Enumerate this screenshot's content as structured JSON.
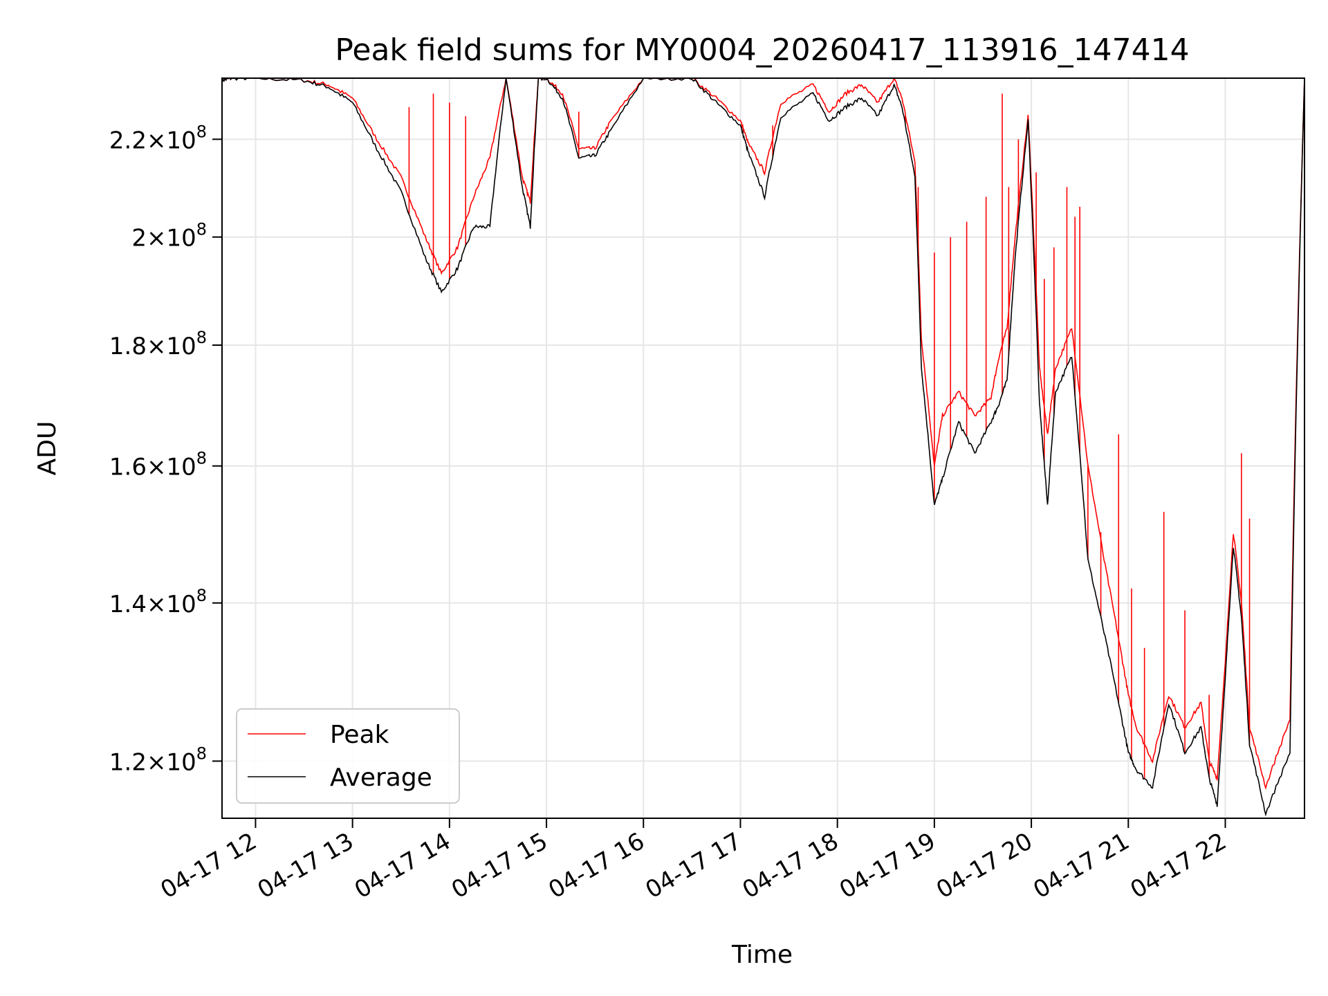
{
  "chart_data": {
    "type": "line",
    "title": "Peak field sums for MY0004_20260417_113916_147414",
    "xlabel": "Time",
    "ylabel": "ADU",
    "yscale": "log",
    "grid": true,
    "legend_position": "lower-left",
    "x_ticks": [
      "04-17 12",
      "04-17 13",
      "04-17 14",
      "04-17 15",
      "04-17 16",
      "04-17 17",
      "04-17 18",
      "04-17 19",
      "04-17 20",
      "04-17 21",
      "04-17 22"
    ],
    "y_ticks": [
      {
        "value": 120000000,
        "mant": "1.2",
        "exp": "8"
      },
      {
        "value": 140000000,
        "mant": "1.4",
        "exp": "8"
      },
      {
        "value": 160000000,
        "mant": "1.6",
        "exp": "8"
      },
      {
        "value": 180000000,
        "mant": "1.8",
        "exp": "8"
      },
      {
        "value": 200000000,
        "mant": "2",
        "exp": "8"
      },
      {
        "value": 220000000,
        "mant": "2.2",
        "exp": "8"
      }
    ],
    "times_and_multiply": "×",
    "tick_base": "10",
    "xlim": [
      "2026-04-17T11:39:16",
      "2026-04-17T22:49:00"
    ],
    "ylim": [
      113500000,
      233500000
    ],
    "series": [
      {
        "name": "Peak",
        "color": "#ff0000",
        "x": [
          "2026-04-17T11:39:16",
          "2026-04-17T11:45:00",
          "2026-04-17T12:00:00",
          "2026-04-17T12:30:00",
          "2026-04-17T12:45:00",
          "2026-04-17T13:00:00",
          "2026-04-17T13:15:00",
          "2026-04-17T13:30:00",
          "2026-04-17T13:45:00",
          "2026-04-17T13:55:00",
          "2026-04-17T14:05:00",
          "2026-04-17T14:15:00",
          "2026-04-17T14:25:00",
          "2026-04-17T14:35:00",
          "2026-04-17T14:45:00",
          "2026-04-17T14:50:00",
          "2026-04-17T14:55:00",
          "2026-04-17T15:00:00",
          "2026-04-17T15:10:00",
          "2026-04-17T15:20:00",
          "2026-04-17T15:30:00",
          "2026-04-17T15:40:00",
          "2026-04-17T16:00:00",
          "2026-04-17T16:30:00",
          "2026-04-17T16:45:00",
          "2026-04-17T17:00:00",
          "2026-04-17T17:05:00",
          "2026-04-17T17:15:00",
          "2026-04-17T17:25:00",
          "2026-04-17T17:45:00",
          "2026-04-17T17:55:00",
          "2026-04-17T18:05:00",
          "2026-04-17T18:15:00",
          "2026-04-17T18:25:00",
          "2026-04-17T18:35:00",
          "2026-04-17T18:40:00",
          "2026-04-17T18:48:00",
          "2026-04-17T18:52:00",
          "2026-04-17T19:00:00",
          "2026-04-17T19:05:00",
          "2026-04-17T19:15:00",
          "2026-04-17T19:25:00",
          "2026-04-17T19:35:00",
          "2026-04-17T19:40:00",
          "2026-04-17T19:45:00",
          "2026-04-17T19:50:00",
          "2026-04-17T19:58:00",
          "2026-04-17T20:05:00",
          "2026-04-17T20:10:00",
          "2026-04-17T20:15:00",
          "2026-04-17T20:25:00",
          "2026-04-17T20:35:00",
          "2026-04-17T20:45:00",
          "2026-04-17T20:55:00",
          "2026-04-17T21:00:00",
          "2026-04-17T21:05:00",
          "2026-04-17T21:15:00",
          "2026-04-17T21:25:00",
          "2026-04-17T21:35:00",
          "2026-04-17T21:45:00",
          "2026-04-17T21:50:00",
          "2026-04-17T21:55:00",
          "2026-04-17T22:00:00",
          "2026-04-17T22:05:00",
          "2026-04-17T22:10:00",
          "2026-04-17T22:15:00",
          "2026-04-17T22:25:00",
          "2026-04-17T22:40:00",
          "2026-04-17T22:49:00"
        ],
        "y": [
          233000000,
          233500000,
          233500000,
          233000000,
          232000000,
          229000000,
          220000000,
          212000000,
          200000000,
          193000000,
          198000000,
          208000000,
          216000000,
          233500000,
          212000000,
          207000000,
          233500000,
          233500000,
          230000000,
          218000000,
          218000000,
          224000000,
          233500000,
          233500000,
          229000000,
          224000000,
          219000000,
          213000000,
          228000000,
          232000000,
          226000000,
          230000000,
          232000000,
          228000000,
          233500000,
          229000000,
          215000000,
          181000000,
          160000000,
          168000000,
          172000000,
          168000000,
          171000000,
          178000000,
          183000000,
          200000000,
          225000000,
          176000000,
          165000000,
          176000000,
          183000000,
          160000000,
          146000000,
          134000000,
          128000000,
          124000000,
          120000000,
          128000000,
          124000000,
          127000000,
          120000000,
          118000000,
          132000000,
          150000000,
          140000000,
          124000000,
          117000000,
          125000000,
          233500000
        ],
        "spikes": [
          [
            "2026-04-17T13:35:00",
            227000000
          ],
          [
            "2026-04-17T13:50:00",
            230000000
          ],
          [
            "2026-04-17T14:00:00",
            228000000
          ],
          [
            "2026-04-17T14:10:00",
            225000000
          ],
          [
            "2026-04-17T15:20:00",
            226000000
          ],
          [
            "2026-04-17T17:20:00",
            223000000
          ],
          [
            "2026-04-17T18:42:00",
            225000000
          ],
          [
            "2026-04-17T18:50:00",
            210000000
          ],
          [
            "2026-04-17T19:00:00",
            197000000
          ],
          [
            "2026-04-17T19:10:00",
            200000000
          ],
          [
            "2026-04-17T19:20:00",
            203000000
          ],
          [
            "2026-04-17T19:32:00",
            208000000
          ],
          [
            "2026-04-17T19:42:00",
            230000000
          ],
          [
            "2026-04-17T19:46:00",
            210000000
          ],
          [
            "2026-04-17T19:52:00",
            220000000
          ],
          [
            "2026-04-17T20:03:00",
            213000000
          ],
          [
            "2026-04-17T20:08:00",
            192000000
          ],
          [
            "2026-04-17T20:14:00",
            198000000
          ],
          [
            "2026-04-17T20:22:00",
            210000000
          ],
          [
            "2026-04-17T20:27:00",
            204000000
          ],
          [
            "2026-04-17T20:30:00",
            206000000
          ],
          [
            "2026-04-17T20:35:00",
            160000000
          ],
          [
            "2026-04-17T20:43:00",
            150000000
          ],
          [
            "2026-04-17T20:54:00",
            165000000
          ],
          [
            "2026-04-17T21:02:00",
            142000000
          ],
          [
            "2026-04-17T21:10:00",
            134000000
          ],
          [
            "2026-04-17T21:22:00",
            153000000
          ],
          [
            "2026-04-17T21:35:00",
            139000000
          ],
          [
            "2026-04-17T21:50:00",
            128000000
          ],
          [
            "2026-04-17T22:01:00",
            135000000
          ],
          [
            "2026-04-17T22:10:00",
            162000000
          ],
          [
            "2026-04-17T22:15:00",
            152000000
          ]
        ]
      },
      {
        "name": "Average",
        "color": "#000000",
        "x": [
          "2026-04-17T11:39:16",
          "2026-04-17T11:45:00",
          "2026-04-17T12:00:00",
          "2026-04-17T12:30:00",
          "2026-04-17T12:45:00",
          "2026-04-17T13:00:00",
          "2026-04-17T13:15:00",
          "2026-04-17T13:30:00",
          "2026-04-17T13:45:00",
          "2026-04-17T13:55:00",
          "2026-04-17T14:05:00",
          "2026-04-17T14:15:00",
          "2026-04-17T14:25:00",
          "2026-04-17T14:35:00",
          "2026-04-17T14:45:00",
          "2026-04-17T14:50:00",
          "2026-04-17T14:55:00",
          "2026-04-17T15:00:00",
          "2026-04-17T15:10:00",
          "2026-04-17T15:20:00",
          "2026-04-17T15:30:00",
          "2026-04-17T15:40:00",
          "2026-04-17T16:00:00",
          "2026-04-17T16:30:00",
          "2026-04-17T16:45:00",
          "2026-04-17T17:00:00",
          "2026-04-17T17:05:00",
          "2026-04-17T17:15:00",
          "2026-04-17T17:25:00",
          "2026-04-17T17:45:00",
          "2026-04-17T17:55:00",
          "2026-04-17T18:05:00",
          "2026-04-17T18:15:00",
          "2026-04-17T18:25:00",
          "2026-04-17T18:35:00",
          "2026-04-17T18:40:00",
          "2026-04-17T18:48:00",
          "2026-04-17T18:52:00",
          "2026-04-17T19:00:00",
          "2026-04-17T19:05:00",
          "2026-04-17T19:15:00",
          "2026-04-17T19:25:00",
          "2026-04-17T19:35:00",
          "2026-04-17T19:40:00",
          "2026-04-17T19:45:00",
          "2026-04-17T19:50:00",
          "2026-04-17T19:58:00",
          "2026-04-17T20:05:00",
          "2026-04-17T20:10:00",
          "2026-04-17T20:15:00",
          "2026-04-17T20:25:00",
          "2026-04-17T20:35:00",
          "2026-04-17T20:45:00",
          "2026-04-17T20:55:00",
          "2026-04-17T21:00:00",
          "2026-04-17T21:05:00",
          "2026-04-17T21:15:00",
          "2026-04-17T21:25:00",
          "2026-04-17T21:35:00",
          "2026-04-17T21:45:00",
          "2026-04-17T21:50:00",
          "2026-04-17T21:55:00",
          "2026-04-17T22:00:00",
          "2026-04-17T22:05:00",
          "2026-04-17T22:10:00",
          "2026-04-17T22:15:00",
          "2026-04-17T22:25:00",
          "2026-04-17T22:40:00",
          "2026-04-17T22:49:00"
        ],
        "y": [
          233000000,
          233500000,
          233500000,
          233000000,
          231500000,
          228000000,
          218000000,
          209000000,
          196000000,
          189500000,
          194000000,
          202000000,
          202000000,
          233500000,
          210000000,
          202000000,
          233500000,
          233500000,
          229000000,
          216000000,
          216500000,
          222000000,
          233500000,
          233500000,
          228000000,
          223000000,
          217000000,
          208000000,
          225000000,
          230000000,
          224000000,
          227000000,
          229000000,
          225000000,
          232000000,
          227000000,
          212000000,
          176000000,
          154000000,
          158000000,
          167000000,
          162000000,
          167000000,
          170000000,
          174000000,
          196000000,
          224000000,
          170000000,
          154000000,
          172000000,
          178000000,
          146000000,
          136000000,
          126000000,
          121000000,
          119000000,
          117000000,
          127000000,
          121000000,
          124000000,
          118000000,
          115000000,
          130000000,
          148000000,
          138000000,
          122000000,
          114000000,
          121000000,
          233500000
        ]
      }
    ]
  }
}
